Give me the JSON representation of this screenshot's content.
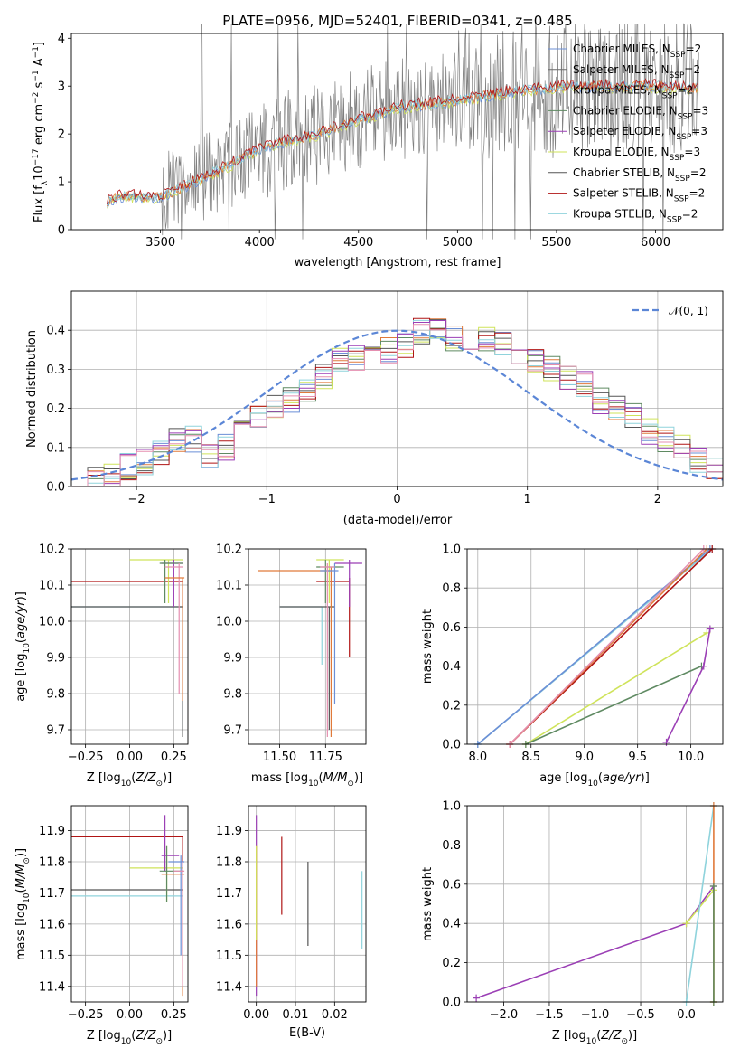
{
  "title": "PLATE=0956, MJD=52401, FIBERID=0341, z=0.485",
  "colors": {
    "Chabrier MILES": "#6b8fd6",
    "Salpeter MILES": "#6b6b6b",
    "Kroupa MILES": "#e07a3a",
    "Chabrier ELODIE": "#5f8a62",
    "Salpeter ELODIE": "#9b3fb5",
    "Kroupa ELODIE": "#cfe35a",
    "Chabrier STELIB": "#555555",
    "Salpeter STELIB": "#b01515",
    "Kroupa STELIB": "#8fd3dc",
    "pink": "#e58fb0",
    "normal": "#5b86d6",
    "data": "#7f7f7f"
  },
  "chart_data": [
    {
      "id": "spectrum",
      "type": "line",
      "title": "PLATE=0956, MJD=52401, FIBERID=0341, z=0.485",
      "xlabel": "wavelength [Angstrom, rest frame]",
      "ylabel": "Flux [f$_\\lambda$10$^{-17}$ erg cm$^{-2}$ s$^{-1}$ A$^{-1}$]",
      "xlim": [
        3050,
        6340
      ],
      "ylim": [
        0,
        4.1
      ],
      "xticks": [
        3500,
        4000,
        4500,
        5000,
        5500,
        6000
      ],
      "yticks": [
        0,
        1,
        2,
        3,
        4
      ],
      "grid": false,
      "legend_position": "top-right",
      "legend": [
        {
          "label": "Chabrier MILES, N",
          "sub": "SSP",
          "tail": "=2",
          "color_key": "Chabrier MILES"
        },
        {
          "label": "Salpeter MILES, N",
          "sub": "SSP",
          "tail": "=2",
          "color_key": "Salpeter MILES"
        },
        {
          "label": "Kroupa MILES, N",
          "sub": "SSP",
          "tail": "=2",
          "color_key": "Kroupa MILES"
        },
        {
          "label": "Chabrier ELODIE, N",
          "sub": "SSP",
          "tail": "=3",
          "color_key": "Chabrier ELODIE"
        },
        {
          "label": "Salpeter ELODIE, N",
          "sub": "SSP",
          "tail": "=3",
          "color_key": "Salpeter ELODIE"
        },
        {
          "label": "Kroupa ELODIE, N",
          "sub": "SSP",
          "tail": "=3",
          "color_key": "Kroupa ELODIE"
        },
        {
          "label": "Chabrier STELIB, N",
          "sub": "SSP",
          "tail": "=2",
          "color_key": "Chabrier STELIB"
        },
        {
          "label": "Salpeter STELIB, N",
          "sub": "SSP",
          "tail": "=2",
          "color_key": "Salpeter STELIB"
        },
        {
          "label": "Kroupa STELIB, N",
          "sub": "SSP",
          "tail": "=2",
          "color_key": "Kroupa STELIB"
        }
      ],
      "model_continuum": [
        [
          3230,
          0.6
        ],
        [
          3300,
          0.7
        ],
        [
          3500,
          0.68
        ],
        [
          3700,
          1.05
        ],
        [
          3900,
          1.45
        ],
        [
          4000,
          1.7
        ],
        [
          4300,
          2.0
        ],
        [
          4500,
          2.3
        ],
        [
          4700,
          2.55
        ],
        [
          5000,
          2.7
        ],
        [
          5300,
          2.9
        ],
        [
          5600,
          3.0
        ],
        [
          6000,
          3.0
        ],
        [
          6220,
          2.95
        ]
      ]
    },
    {
      "id": "residuals",
      "type": "histogram",
      "xlabel": "(data-model)/error",
      "ylabel": "Normed distribution",
      "xlim": [
        -2.5,
        2.5
      ],
      "ylim": [
        0,
        0.5
      ],
      "xticks": [
        -2,
        -1,
        0,
        1,
        2
      ],
      "yticks": [
        0.0,
        0.1,
        0.2,
        0.3,
        0.4
      ],
      "grid": true,
      "legend": "$\\mathcal{N}(0,1)$",
      "legend_position": "top-right",
      "bin_edges_range": [
        -2.5,
        2.5
      ],
      "bins": 40,
      "envelope": [
        0.02,
        0.02,
        0.03,
        0.05,
        0.06,
        0.09,
        0.12,
        0.12,
        0.08,
        0.1,
        0.14,
        0.18,
        0.2,
        0.22,
        0.25,
        0.28,
        0.32,
        0.33,
        0.33,
        0.35,
        0.36,
        0.4,
        0.4,
        0.38,
        0.37,
        0.38,
        0.37,
        0.33,
        0.32,
        0.3,
        0.28,
        0.26,
        0.22,
        0.2,
        0.18,
        0.14,
        0.12,
        0.1,
        0.07,
        0.05
      ]
    },
    {
      "id": "age-vs-Z",
      "type": "scatter",
      "xlabel": "Z [log$_{10}$(Z/Z$_\\odot$)]",
      "ylabel": "age  [log$_{10}$(age/yr)]",
      "xlim": [
        -0.33,
        0.33
      ],
      "ylim": [
        9.66,
        10.2
      ],
      "xticks": [
        -0.25,
        0.0,
        0.25
      ],
      "yticks": [
        9.7,
        9.8,
        9.9,
        10.0,
        10.1,
        10.2
      ],
      "grid": true
    },
    {
      "id": "age-vs-mass",
      "type": "scatter",
      "xlabel": "mass [log$_{10}$(M/M$_\\odot$)]",
      "ylabel": "",
      "xlim": [
        11.33,
        11.97
      ],
      "ylim": [
        9.66,
        10.2
      ],
      "xticks": [
        11.5,
        11.75
      ],
      "yticks": [
        9.7,
        9.8,
        9.9,
        10.0,
        10.1,
        10.2
      ],
      "grid": true
    },
    {
      "id": "massweight-vs-age",
      "type": "line",
      "xlabel": "age  [log$_{10}$(age/yr)]",
      "ylabel": "mass weight",
      "xlim": [
        7.9,
        10.3
      ],
      "ylim": [
        0,
        1
      ],
      "xticks": [
        8.0,
        8.5,
        9.0,
        9.5,
        10.0
      ],
      "yticks": [
        0.0,
        0.2,
        0.4,
        0.6,
        0.8,
        1.0
      ],
      "grid": true,
      "series": [
        {
          "color_key": "Kroupa STELIB",
          "x": [
            8.0,
            10.2
          ],
          "y": [
            0.0,
            1.0
          ]
        },
        {
          "color_key": "Chabrier MILES",
          "x": [
            8.0,
            10.18
          ],
          "y": [
            0.0,
            1.0
          ]
        },
        {
          "color_key": "Salpeter STELIB",
          "x": [
            8.3,
            10.2
          ],
          "y": [
            0.0,
            1.0
          ]
        },
        {
          "color_key": "Kroupa MILES",
          "x": [
            8.3,
            10.15
          ],
          "y": [
            0.0,
            1.0
          ]
        },
        {
          "color_key": "pink",
          "x": [
            8.3,
            10.12
          ],
          "y": [
            0.0,
            1.0
          ]
        },
        {
          "color_key": "Kroupa ELODIE",
          "x": [
            8.45,
            10.15
          ],
          "y": [
            0.0,
            0.57
          ]
        },
        {
          "color_key": "Chabrier ELODIE",
          "x": [
            8.45,
            10.1
          ],
          "y": [
            0.0,
            0.4
          ]
        },
        {
          "color_key": "Salpeter ELODIE",
          "x": [
            9.77,
            10.12,
            10.18
          ],
          "y": [
            0.01,
            0.4,
            0.59
          ]
        }
      ]
    },
    {
      "id": "mass-vs-Z",
      "type": "scatter",
      "xlabel": "Z [log$_{10}$(Z/Z$_\\odot$)]",
      "ylabel": "mass [log$_{10}$(M/M$_\\odot$)]",
      "xlim": [
        -0.33,
        0.33
      ],
      "ylim": [
        11.35,
        11.98
      ],
      "xticks": [
        -0.25,
        0.0,
        0.25
      ],
      "yticks": [
        11.4,
        11.5,
        11.6,
        11.7,
        11.8,
        11.9
      ],
      "grid": true
    },
    {
      "id": "mass-vs-EBV",
      "type": "scatter",
      "xlabel": "E(B-V)",
      "ylabel": "",
      "xlim": [
        -0.002,
        0.028
      ],
      "ylim": [
        11.35,
        11.98
      ],
      "xticks": [
        0.0,
        0.01,
        0.02
      ],
      "yticks": [
        11.4,
        11.5,
        11.6,
        11.7,
        11.8,
        11.9
      ],
      "grid": true
    },
    {
      "id": "massweight-vs-Z",
      "type": "line",
      "xlabel": "Z [log$_{10}$(Z/Z$_\\odot$)]",
      "ylabel": "mass weight",
      "xlim": [
        -2.4,
        0.4
      ],
      "ylim": [
        0,
        1
      ],
      "xticks": [
        -2.0,
        -1.5,
        -1.0,
        -0.5,
        0.0
      ],
      "yticks": [
        0.0,
        0.2,
        0.4,
        0.6,
        0.8,
        1.0
      ],
      "grid": true,
      "series": [
        {
          "color_key": "Salpeter ELODIE",
          "x": [
            -2.3,
            0.0,
            0.3
          ],
          "y": [
            0.02,
            0.4,
            0.59
          ]
        },
        {
          "color_key": "Kroupa ELODIE",
          "x": [
            0.0,
            0.3,
            0.3
          ],
          "y": [
            0.4,
            0.57,
            0.0
          ]
        },
        {
          "color_key": "Kroupa STELIB",
          "x": [
            0.0,
            0.3
          ],
          "y": [
            0.0,
            1.0
          ]
        },
        {
          "color_key": "Kroupa MILES",
          "x": [
            0.3,
            0.3
          ],
          "y": [
            0.0,
            1.0
          ]
        },
        {
          "color_key": "Chabrier ELODIE",
          "x": [
            0.3,
            0.3
          ],
          "y": [
            0.0,
            0.59
          ]
        }
      ]
    }
  ]
}
